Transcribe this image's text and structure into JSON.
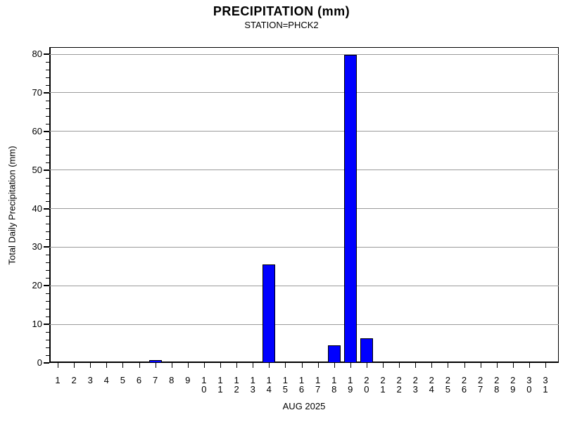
{
  "chart_data": {
    "type": "bar",
    "title": "PRECIPITATION (mm)",
    "subtitle": "STATION=PHCK2",
    "ylabel": "Total Daily Precipitation (mm)",
    "xlabel": "AUG 2025",
    "ylim": [
      0,
      80
    ],
    "y_major_ticks": [
      0,
      10,
      20,
      30,
      40,
      50,
      60,
      70,
      80
    ],
    "y_minor_tick_interval": 2,
    "grid": "horizontal-major-gray",
    "legend": "none",
    "bar_color": "#0000ff",
    "bar_outline_color": "#000000",
    "gridline_color": "#9b9b9b",
    "categories": [
      "1",
      "2",
      "3",
      "4",
      "5",
      "6",
      "7",
      "8",
      "9",
      "10",
      "11",
      "12",
      "13",
      "14",
      "15",
      "16",
      "17",
      "18",
      "19",
      "20",
      "21",
      "22",
      "23",
      "24",
      "25",
      "26",
      "27",
      "28",
      "29",
      "30",
      "31"
    ],
    "values": [
      0.25,
      0,
      0,
      0,
      0,
      0.2,
      0.7,
      0,
      0,
      0,
      0.2,
      0,
      0.25,
      25.5,
      0,
      0,
      0,
      4.6,
      79.8,
      6.4,
      0,
      0.2,
      0.2,
      0.25,
      0,
      0,
      0,
      0,
      0,
      0,
      0
    ]
  }
}
